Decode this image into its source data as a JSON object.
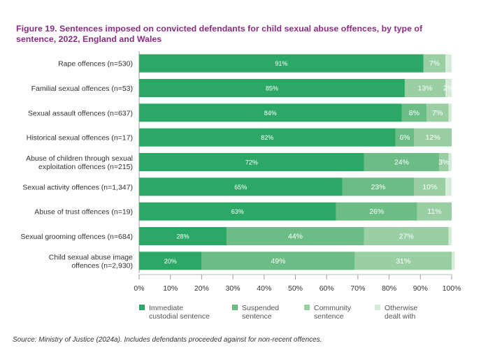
{
  "title": "Figure 19. Sentences imposed on convicted defendants for child sexual abuse offences, by type of sentence, 2022, England and Wales",
  "source": "Source: Ministry of Justice (2024a). Includes defendants proceeded against for non-recent offences.",
  "chart_data": {
    "type": "bar",
    "orientation": "horizontal",
    "stacked": true,
    "xlim": [
      0,
      100
    ],
    "x_ticks": [
      "0%",
      "10%",
      "20%",
      "30%",
      "40%",
      "50%",
      "60%",
      "70%",
      "80%",
      "90%",
      "100%"
    ],
    "categories": [
      [
        "Rape offences (n=530)"
      ],
      [
        "Familial sexual offences (n=53)"
      ],
      [
        "Sexual assault offences (n=637)"
      ],
      [
        "Historical sexual offences  (n=17)"
      ],
      [
        "Abuse of children through sexual",
        "exploitation offences (n=215)"
      ],
      [
        "Sexual activity offences (n=1,347)"
      ],
      [
        "Abuse of trust offences (n=19)"
      ],
      [
        "Sexual grooming offences (n=684)"
      ],
      [
        "Child sexual abuse image",
        "offences (n=2,930)"
      ]
    ],
    "series": [
      {
        "name": [
          "Immediate",
          "custodial sentence"
        ],
        "color": "#2ca866",
        "values": [
          91,
          85,
          84,
          82,
          72,
          65,
          63,
          28,
          20
        ],
        "labels": [
          "91%",
          "85%",
          "84%",
          "82%",
          "72%",
          "65%",
          "63%",
          "28%",
          "20%"
        ]
      },
      {
        "name": [
          "Suspended",
          "sentence"
        ],
        "color": "#6bbd85",
        "values": [
          0,
          0,
          8,
          6,
          24,
          23,
          26,
          44,
          49
        ],
        "labels": [
          "",
          "",
          "8%",
          "6%",
          "24%",
          "23%",
          "26%",
          "44%",
          "49%"
        ]
      },
      {
        "name": [
          "Community",
          "sentence"
        ],
        "color": "#99cfa3",
        "values": [
          7,
          13,
          7,
          12,
          3,
          10,
          11,
          27,
          31
        ],
        "labels": [
          "7%",
          "13%",
          "7%",
          "12%",
          "3%",
          "10%",
          "11%",
          "27%",
          "31%"
        ]
      },
      {
        "name": [
          "Otherwise",
          "dealt with"
        ],
        "color": "#d6ecd9",
        "values": [
          2,
          2,
          1,
          0,
          1,
          2,
          0,
          1,
          1
        ],
        "labels": [
          "",
          "2%",
          "",
          "",
          "",
          "",
          "",
          "",
          ""
        ]
      }
    ]
  }
}
